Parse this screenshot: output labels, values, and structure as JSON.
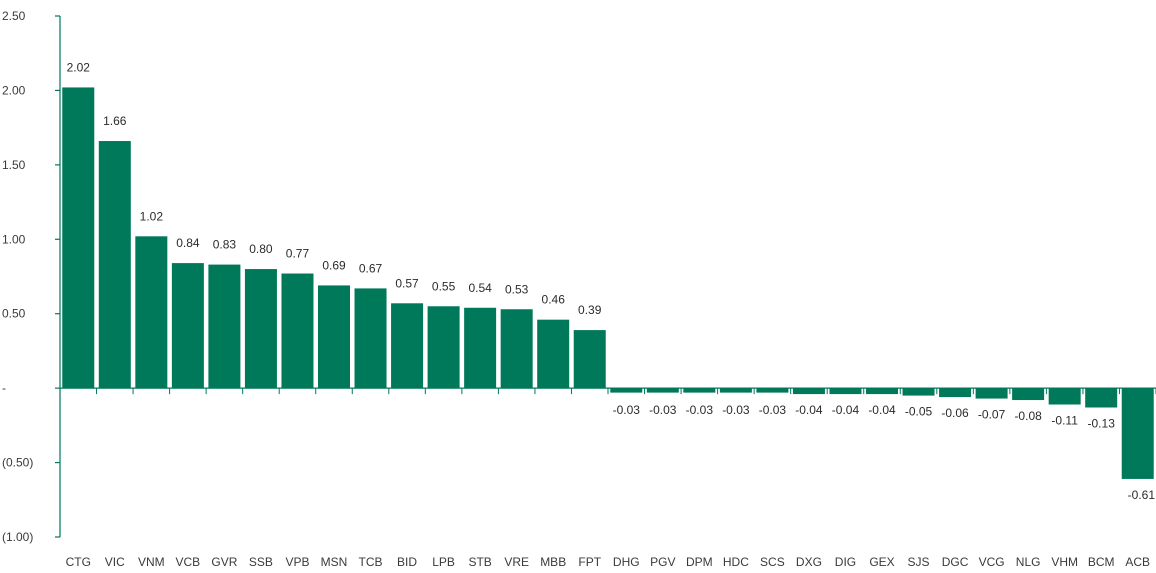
{
  "chart_data": {
    "type": "bar",
    "title": "",
    "xlabel": "",
    "ylabel": "",
    "ylim": [
      -1.0,
      2.5
    ],
    "yticks": [
      2.5,
      2.0,
      1.5,
      1.0,
      0.5,
      0,
      -0.5,
      -1.0
    ],
    "ytick_labels": [
      "2.50",
      "2.00",
      "1.50",
      "1.00",
      "0.50",
      "-",
      "(0.50)",
      "(1.00)"
    ],
    "grid": false,
    "legend": "none",
    "bar_color": "#00785A",
    "axis_color": "#00785A",
    "categories": [
      "CTG",
      "VIC",
      "VNM",
      "VCB",
      "GVR",
      "SSB",
      "VPB",
      "MSN",
      "TCB",
      "BID",
      "LPB",
      "STB",
      "VRE",
      "MBB",
      "FPT",
      "DHG",
      "PGV",
      "DPM",
      "HDC",
      "SCS",
      "DXG",
      "DIG",
      "GEX",
      "SJS",
      "DGC",
      "VCG",
      "NLG",
      "VHM",
      "BCM",
      "ACB"
    ],
    "values": [
      2.02,
      1.66,
      1.02,
      0.84,
      0.83,
      0.8,
      0.77,
      0.69,
      0.67,
      0.57,
      0.55,
      0.54,
      0.53,
      0.46,
      0.39,
      -0.03,
      -0.03,
      -0.03,
      -0.03,
      -0.03,
      -0.04,
      -0.04,
      -0.04,
      -0.05,
      -0.06,
      -0.07,
      -0.08,
      -0.11,
      -0.13,
      -0.61
    ],
    "value_labels": [
      "2.02",
      "1.66",
      "1.02",
      "0.84",
      "0.83",
      "0.80",
      "0.77",
      "0.69",
      "0.67",
      "0.57",
      "0.55",
      "0.54",
      "0.53",
      "0.46",
      "0.39",
      "-0.03",
      "-0.03",
      "-0.03",
      "-0.03",
      "-0.03",
      "-0.04",
      "-0.04",
      "-0.04",
      "-0.05",
      "-0.06",
      "-0.07",
      "-0.08",
      "-0.11",
      "-0.13",
      "-0.61"
    ]
  }
}
